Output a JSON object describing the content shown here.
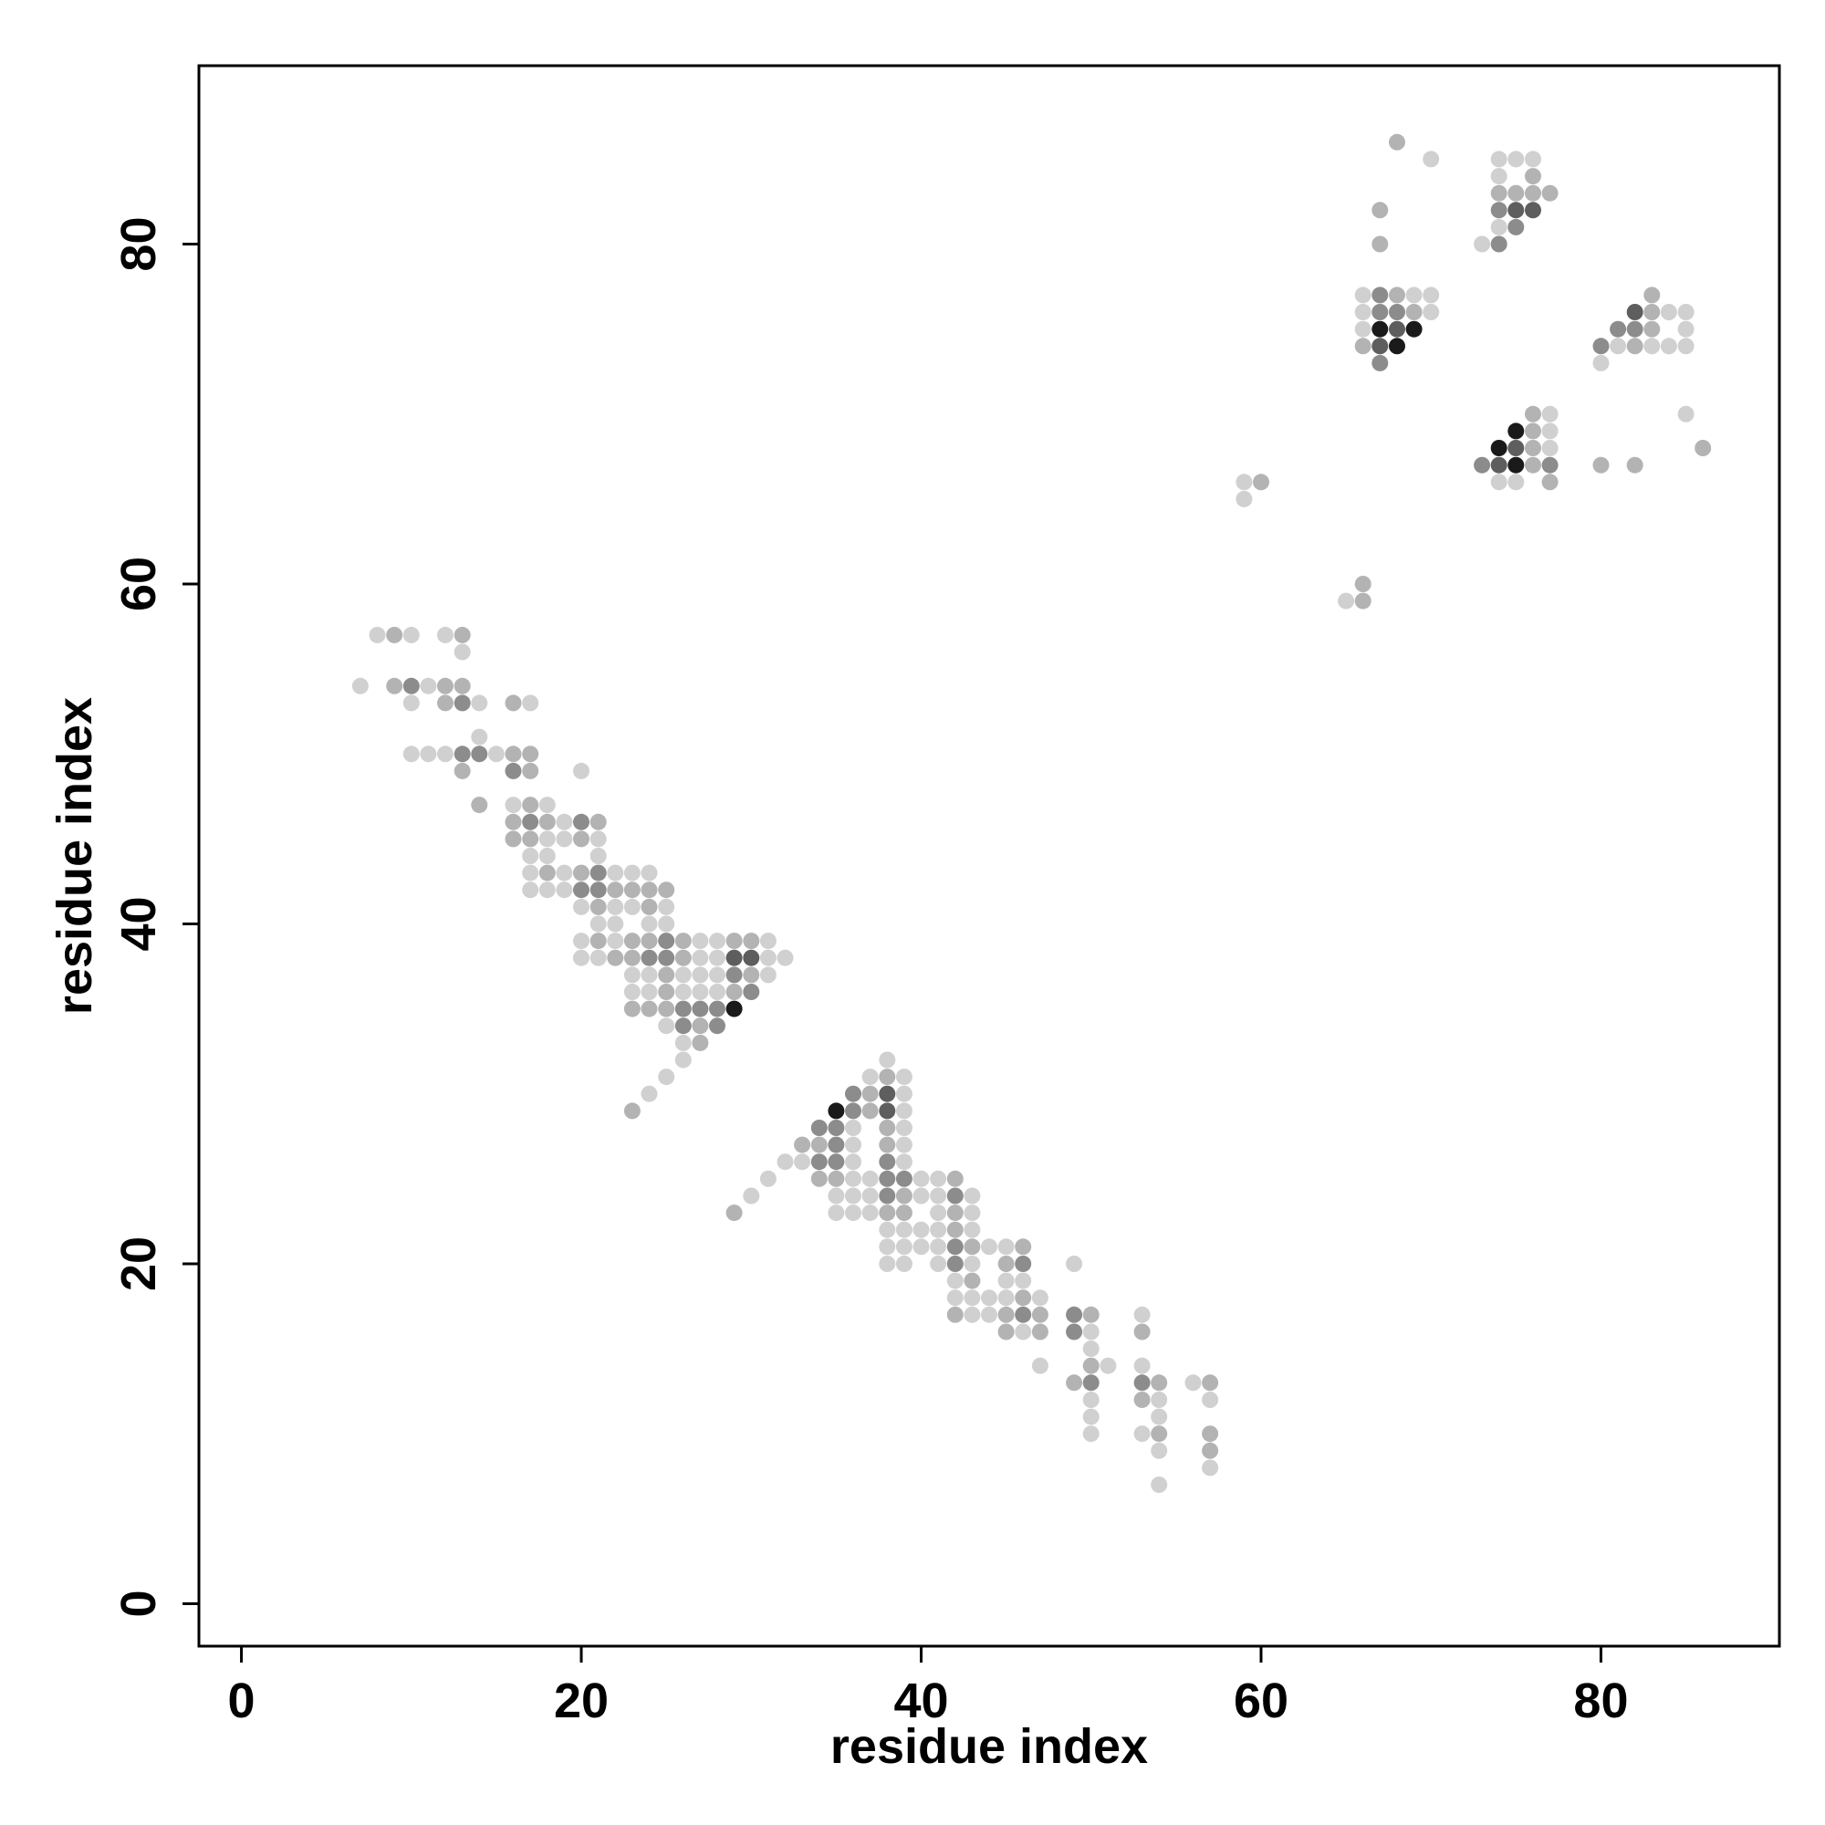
{
  "chart_data": {
    "type": "scatter",
    "title": "",
    "xlabel": "residue index",
    "ylabel": "residue index",
    "xlim": [
      -2.5,
      90.5
    ],
    "ylim": [
      -2.5,
      90.5
    ],
    "xticks": [
      0,
      20,
      40,
      60,
      80
    ],
    "yticks": [
      0,
      20,
      40,
      60,
      80
    ],
    "grid": false,
    "legend": "none",
    "shade_scale": {
      "1": "#d0d0d0",
      "2": "#b3b3b3",
      "3": "#8c8c8c",
      "4": "#5e5e5e",
      "5": "#1a1a1a"
    },
    "points": [
      [
        7,
        54,
        1
      ],
      [
        8,
        57,
        1
      ],
      [
        9,
        57,
        2
      ],
      [
        10,
        57,
        1
      ],
      [
        9,
        54,
        2
      ],
      [
        10,
        54,
        3
      ],
      [
        11,
        54,
        1
      ],
      [
        12,
        54,
        2
      ],
      [
        13,
        54,
        2
      ],
      [
        10,
        53,
        1
      ],
      [
        12,
        53,
        2
      ],
      [
        13,
        53,
        3
      ],
      [
        14,
        53,
        1
      ],
      [
        12,
        57,
        1
      ],
      [
        13,
        57,
        2
      ],
      [
        13,
        56,
        1
      ],
      [
        10,
        50,
        1
      ],
      [
        11,
        50,
        1
      ],
      [
        12,
        50,
        1
      ],
      [
        13,
        50,
        3
      ],
      [
        14,
        50,
        3
      ],
      [
        15,
        50,
        1
      ],
      [
        16,
        50,
        2
      ],
      [
        17,
        50,
        2
      ],
      [
        13,
        49,
        2
      ],
      [
        14,
        51,
        1
      ],
      [
        14,
        47,
        2
      ],
      [
        16,
        53,
        2
      ],
      [
        17,
        53,
        1
      ],
      [
        16,
        49,
        3
      ],
      [
        17,
        49,
        2
      ],
      [
        16,
        47,
        1
      ],
      [
        17,
        47,
        2
      ],
      [
        18,
        47,
        1
      ],
      [
        16,
        46,
        2
      ],
      [
        17,
        46,
        3
      ],
      [
        18,
        46,
        2
      ],
      [
        19,
        46,
        1
      ],
      [
        20,
        46,
        3
      ],
      [
        21,
        46,
        2
      ],
      [
        16,
        45,
        2
      ],
      [
        17,
        45,
        2
      ],
      [
        18,
        45,
        1
      ],
      [
        19,
        45,
        1
      ],
      [
        20,
        45,
        2
      ],
      [
        21,
        45,
        1
      ],
      [
        17,
        44,
        1
      ],
      [
        18,
        44,
        1
      ],
      [
        21,
        44,
        1
      ],
      [
        17,
        43,
        1
      ],
      [
        18,
        43,
        2
      ],
      [
        19,
        43,
        1
      ],
      [
        20,
        43,
        2
      ],
      [
        21,
        43,
        3
      ],
      [
        22,
        43,
        1
      ],
      [
        23,
        43,
        1
      ],
      [
        24,
        43,
        1
      ],
      [
        17,
        42,
        1
      ],
      [
        18,
        42,
        1
      ],
      [
        19,
        42,
        1
      ],
      [
        20,
        42,
        3
      ],
      [
        21,
        42,
        3
      ],
      [
        22,
        42,
        2
      ],
      [
        23,
        42,
        2
      ],
      [
        24,
        42,
        2
      ],
      [
        25,
        42,
        2
      ],
      [
        20,
        49,
        1
      ],
      [
        20,
        41,
        1
      ],
      [
        21,
        41,
        2
      ],
      [
        22,
        41,
        1
      ],
      [
        23,
        41,
        1
      ],
      [
        24,
        41,
        2
      ],
      [
        25,
        41,
        1
      ],
      [
        21,
        40,
        1
      ],
      [
        22,
        40,
        1
      ],
      [
        24,
        40,
        1
      ],
      [
        25,
        40,
        1
      ],
      [
        20,
        39,
        1
      ],
      [
        21,
        39,
        2
      ],
      [
        22,
        39,
        1
      ],
      [
        23,
        39,
        2
      ],
      [
        24,
        39,
        2
      ],
      [
        25,
        39,
        3
      ],
      [
        26,
        39,
        2
      ],
      [
        27,
        39,
        1
      ],
      [
        28,
        39,
        1
      ],
      [
        29,
        39,
        2
      ],
      [
        30,
        39,
        2
      ],
      [
        31,
        39,
        1
      ],
      [
        20,
        38,
        1
      ],
      [
        21,
        38,
        1
      ],
      [
        22,
        38,
        2
      ],
      [
        23,
        38,
        2
      ],
      [
        24,
        38,
        3
      ],
      [
        25,
        38,
        3
      ],
      [
        26,
        38,
        2
      ],
      [
        27,
        38,
        1
      ],
      [
        28,
        38,
        1
      ],
      [
        29,
        38,
        4
      ],
      [
        30,
        38,
        4
      ],
      [
        31,
        38,
        1
      ],
      [
        32,
        38,
        1
      ],
      [
        23,
        37,
        1
      ],
      [
        24,
        37,
        1
      ],
      [
        25,
        37,
        2
      ],
      [
        26,
        37,
        1
      ],
      [
        27,
        37,
        1
      ],
      [
        28,
        37,
        1
      ],
      [
        29,
        37,
        3
      ],
      [
        30,
        37,
        2
      ],
      [
        31,
        37,
        1
      ],
      [
        23,
        36,
        1
      ],
      [
        24,
        36,
        1
      ],
      [
        25,
        36,
        2
      ],
      [
        26,
        36,
        1
      ],
      [
        27,
        36,
        1
      ],
      [
        28,
        36,
        1
      ],
      [
        29,
        36,
        2
      ],
      [
        30,
        36,
        3
      ],
      [
        23,
        35,
        2
      ],
      [
        24,
        35,
        2
      ],
      [
        25,
        35,
        2
      ],
      [
        26,
        35,
        3
      ],
      [
        27,
        35,
        3
      ],
      [
        28,
        35,
        3
      ],
      [
        29,
        35,
        5
      ],
      [
        25,
        34,
        1
      ],
      [
        26,
        34,
        3
      ],
      [
        27,
        34,
        2
      ],
      [
        28,
        34,
        3
      ],
      [
        26,
        33,
        1
      ],
      [
        27,
        33,
        2
      ],
      [
        26,
        32,
        1
      ],
      [
        25,
        31,
        1
      ],
      [
        24,
        30,
        1
      ],
      [
        23,
        29,
        2
      ],
      [
        29,
        23,
        2
      ],
      [
        30,
        24,
        1
      ],
      [
        31,
        25,
        1
      ],
      [
        32,
        26,
        1
      ],
      [
        33,
        26,
        1
      ],
      [
        33,
        27,
        2
      ],
      [
        34,
        27,
        2
      ],
      [
        34,
        28,
        3
      ],
      [
        35,
        28,
        3
      ],
      [
        34,
        26,
        3
      ],
      [
        35,
        26,
        3
      ],
      [
        36,
        26,
        1
      ],
      [
        34,
        25,
        2
      ],
      [
        35,
        25,
        2
      ],
      [
        36,
        25,
        1
      ],
      [
        37,
        25,
        1
      ],
      [
        35,
        29,
        5
      ],
      [
        36,
        29,
        3
      ],
      [
        37,
        29,
        2
      ],
      [
        38,
        29,
        4
      ],
      [
        39,
        29,
        1
      ],
      [
        36,
        30,
        3
      ],
      [
        37,
        30,
        2
      ],
      [
        38,
        30,
        4
      ],
      [
        39,
        30,
        1
      ],
      [
        37,
        31,
        1
      ],
      [
        38,
        31,
        2
      ],
      [
        39,
        31,
        1
      ],
      [
        38,
        32,
        1
      ],
      [
        35,
        27,
        3
      ],
      [
        36,
        27,
        1
      ],
      [
        38,
        27,
        2
      ],
      [
        39,
        27,
        1
      ],
      [
        38,
        28,
        2
      ],
      [
        39,
        28,
        1
      ],
      [
        36,
        28,
        1
      ],
      [
        38,
        26,
        3
      ],
      [
        39,
        26,
        1
      ],
      [
        38,
        25,
        3
      ],
      [
        39,
        25,
        3
      ],
      [
        40,
        25,
        1
      ],
      [
        41,
        25,
        1
      ],
      [
        42,
        25,
        2
      ],
      [
        35,
        24,
        1
      ],
      [
        36,
        24,
        1
      ],
      [
        37,
        24,
        1
      ],
      [
        38,
        24,
        3
      ],
      [
        39,
        24,
        2
      ],
      [
        40,
        24,
        1
      ],
      [
        41,
        24,
        1
      ],
      [
        42,
        24,
        3
      ],
      [
        43,
        24,
        1
      ],
      [
        35,
        23,
        1
      ],
      [
        36,
        23,
        1
      ],
      [
        37,
        23,
        1
      ],
      [
        38,
        23,
        2
      ],
      [
        39,
        23,
        2
      ],
      [
        41,
        23,
        1
      ],
      [
        42,
        23,
        2
      ],
      [
        43,
        23,
        1
      ],
      [
        38,
        22,
        1
      ],
      [
        39,
        22,
        1
      ],
      [
        40,
        22,
        1
      ],
      [
        41,
        22,
        1
      ],
      [
        42,
        22,
        2
      ],
      [
        43,
        22,
        1
      ],
      [
        38,
        21,
        1
      ],
      [
        39,
        21,
        1
      ],
      [
        40,
        21,
        1
      ],
      [
        41,
        21,
        1
      ],
      [
        42,
        21,
        3
      ],
      [
        43,
        21,
        2
      ],
      [
        44,
        21,
        1
      ],
      [
        45,
        21,
        1
      ],
      [
        46,
        21,
        2
      ],
      [
        38,
        20,
        1
      ],
      [
        39,
        20,
        1
      ],
      [
        41,
        20,
        1
      ],
      [
        42,
        20,
        3
      ],
      [
        43,
        20,
        1
      ],
      [
        45,
        20,
        2
      ],
      [
        46,
        20,
        3
      ],
      [
        42,
        19,
        1
      ],
      [
        43,
        19,
        2
      ],
      [
        45,
        19,
        1
      ],
      [
        46,
        19,
        1
      ],
      [
        42,
        18,
        1
      ],
      [
        43,
        18,
        1
      ],
      [
        44,
        18,
        1
      ],
      [
        45,
        18,
        1
      ],
      [
        46,
        18,
        2
      ],
      [
        47,
        18,
        1
      ],
      [
        42,
        17,
        2
      ],
      [
        43,
        17,
        1
      ],
      [
        44,
        17,
        1
      ],
      [
        45,
        17,
        2
      ],
      [
        46,
        17,
        3
      ],
      [
        47,
        17,
        2
      ],
      [
        45,
        16,
        2
      ],
      [
        46,
        16,
        1
      ],
      [
        47,
        16,
        2
      ],
      [
        47,
        14,
        1
      ],
      [
        49,
        20,
        1
      ],
      [
        49,
        17,
        3
      ],
      [
        50,
        17,
        2
      ],
      [
        49,
        16,
        3
      ],
      [
        50,
        16,
        1
      ],
      [
        50,
        15,
        1
      ],
      [
        50,
        14,
        2
      ],
      [
        51,
        14,
        1
      ],
      [
        49,
        13,
        2
      ],
      [
        50,
        13,
        3
      ],
      [
        50,
        12,
        1
      ],
      [
        50,
        11,
        1
      ],
      [
        50,
        10,
        1
      ],
      [
        53,
        17,
        1
      ],
      [
        53,
        16,
        2
      ],
      [
        53,
        14,
        1
      ],
      [
        53,
        13,
        3
      ],
      [
        54,
        13,
        2
      ],
      [
        53,
        12,
        2
      ],
      [
        54,
        12,
        1
      ],
      [
        54,
        11,
        1
      ],
      [
        53,
        10,
        1
      ],
      [
        54,
        10,
        2
      ],
      [
        54,
        9,
        1
      ],
      [
        54,
        7,
        1
      ],
      [
        56,
        13,
        1
      ],
      [
        57,
        13,
        2
      ],
      [
        57,
        12,
        1
      ],
      [
        57,
        10,
        2
      ],
      [
        57,
        9,
        2
      ],
      [
        57,
        8,
        1
      ],
      [
        59,
        66,
        1
      ],
      [
        60,
        66,
        2
      ],
      [
        59,
        65,
        1
      ],
      [
        65,
        59,
        1
      ],
      [
        66,
        59,
        2
      ],
      [
        66,
        60,
        2
      ],
      [
        66,
        77,
        1
      ],
      [
        67,
        77,
        3
      ],
      [
        68,
        77,
        2
      ],
      [
        69,
        77,
        1
      ],
      [
        70,
        77,
        1
      ],
      [
        66,
        76,
        1
      ],
      [
        67,
        76,
        3
      ],
      [
        68,
        76,
        3
      ],
      [
        69,
        76,
        2
      ],
      [
        70,
        76,
        1
      ],
      [
        66,
        75,
        1
      ],
      [
        67,
        75,
        5
      ],
      [
        68,
        75,
        4
      ],
      [
        69,
        75,
        5
      ],
      [
        66,
        74,
        2
      ],
      [
        67,
        74,
        4
      ],
      [
        68,
        74,
        5
      ],
      [
        67,
        73,
        3
      ],
      [
        67,
        82,
        2
      ],
      [
        67,
        80,
        2
      ],
      [
        68,
        86,
        2
      ],
      [
        70,
        85,
        1
      ],
      [
        73,
        80,
        1
      ],
      [
        74,
        80,
        3
      ],
      [
        74,
        85,
        1
      ],
      [
        75,
        85,
        1
      ],
      [
        76,
        85,
        1
      ],
      [
        74,
        84,
        1
      ],
      [
        76,
        84,
        2
      ],
      [
        74,
        83,
        2
      ],
      [
        75,
        83,
        2
      ],
      [
        76,
        83,
        2
      ],
      [
        77,
        83,
        2
      ],
      [
        74,
        82,
        3
      ],
      [
        75,
        82,
        4
      ],
      [
        76,
        82,
        4
      ],
      [
        74,
        81,
        1
      ],
      [
        75,
        81,
        3
      ],
      [
        76,
        70,
        2
      ],
      [
        77,
        70,
        1
      ],
      [
        75,
        69,
        5
      ],
      [
        76,
        69,
        2
      ],
      [
        77,
        69,
        1
      ],
      [
        74,
        68,
        5
      ],
      [
        75,
        68,
        4
      ],
      [
        76,
        68,
        2
      ],
      [
        77,
        68,
        1
      ],
      [
        73,
        67,
        3
      ],
      [
        74,
        67,
        4
      ],
      [
        75,
        67,
        5
      ],
      [
        76,
        67,
        2
      ],
      [
        77,
        67,
        3
      ],
      [
        74,
        66,
        1
      ],
      [
        75,
        66,
        1
      ],
      [
        77,
        66,
        2
      ],
      [
        80,
        74,
        3
      ],
      [
        81,
        74,
        1
      ],
      [
        82,
        74,
        2
      ],
      [
        83,
        74,
        1
      ],
      [
        84,
        74,
        1
      ],
      [
        85,
        74,
        1
      ],
      [
        80,
        73,
        1
      ],
      [
        81,
        75,
        3
      ],
      [
        82,
        75,
        3
      ],
      [
        83,
        75,
        2
      ],
      [
        85,
        75,
        1
      ],
      [
        82,
        76,
        4
      ],
      [
        83,
        76,
        2
      ],
      [
        84,
        76,
        1
      ],
      [
        85,
        76,
        1
      ],
      [
        83,
        77,
        2
      ],
      [
        80,
        67,
        2
      ],
      [
        82,
        67,
        2
      ],
      [
        85,
        70,
        1
      ],
      [
        86,
        68,
        2
      ]
    ]
  }
}
